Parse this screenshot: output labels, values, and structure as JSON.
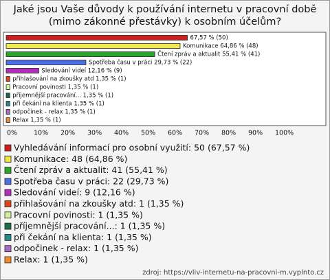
{
  "chart_data": {
    "type": "bar",
    "orientation": "horizontal",
    "title": "Jaké jsou Vaše důvody k používání internetu v pracovní době (mimo zákonné přestávky) k osobním účelům?",
    "values": [
      67.57,
      64.86,
      55.41,
      29.73,
      12.16,
      1.35,
      1.35,
      1.35,
      1.35,
      1.35,
      1.35
    ],
    "value_labels": [
      "67,57 % (50)",
      "Komunikace 64,86 % (48)",
      "Čtení zpráv a aktualit 55,41 % (41)",
      "Spotřeba času v práci 29,73 % (22)",
      "Sledování videí 12,16 % (9)",
      "přihlašování na zkoušky atd 1,35 % (1)",
      "Pracovní povinosti 1,35 % (1)",
      "příjemnější pracování... 1,35 % (1)",
      "při čekání na klienta 1,35 % (1)",
      "odpočinek - relax 1,35 % (1)",
      "Relax 1,35 % (1)"
    ],
    "colors": [
      "#cc1f1f",
      "#f2e84a",
      "#2aa52a",
      "#4a6fe0",
      "#b02fb8",
      "#e0421a",
      "#d4f0a0",
      "#1f6b45",
      "#2a8a8a",
      "#a86cc0",
      "#f08a2a"
    ],
    "legend_labels": [
      "Vyhledávání informací pro osobní využití: 50 (67,57 %)",
      "Komunikace: 48 (64,86 %)",
      "Čtení zpráv a aktualit: 41 (55,41 %)",
      "Spotřeba času v práci: 22 (29,73 %)",
      "Sledování videí: 9 (12,16 %)",
      "přihlašování na zkoušky atd: 1 (1,35 %)",
      "Pracovní povinosti: 1 (1,35 %)",
      "příjemnější pracování...: 1 (1,35 %)",
      "při čekání na klienta: 1 (1,35 %)",
      "odpočinek - relax: 1 (1,35 %)",
      "Relax: 1 (1,35 %)"
    ],
    "xlim": [
      0,
      100
    ],
    "xticks": [
      {
        "value": 0,
        "label": "0%"
      },
      {
        "value": 10,
        "label": "10%"
      },
      {
        "value": 20,
        "label": "20%"
      },
      {
        "value": 30,
        "label": "30%"
      },
      {
        "value": 40,
        "label": "40%"
      },
      {
        "value": 50,
        "label": "50%"
      },
      {
        "value": 60,
        "label": "60%"
      },
      {
        "value": 70,
        "label": "70%"
      },
      {
        "value": 80,
        "label": "80%"
      },
      {
        "value": 90,
        "label": "90%"
      },
      {
        "value": 100,
        "label": "100%"
      }
    ],
    "source": "zdroj: https://vliv-internetu-na-pracovni-m.vyplnto.cz"
  }
}
